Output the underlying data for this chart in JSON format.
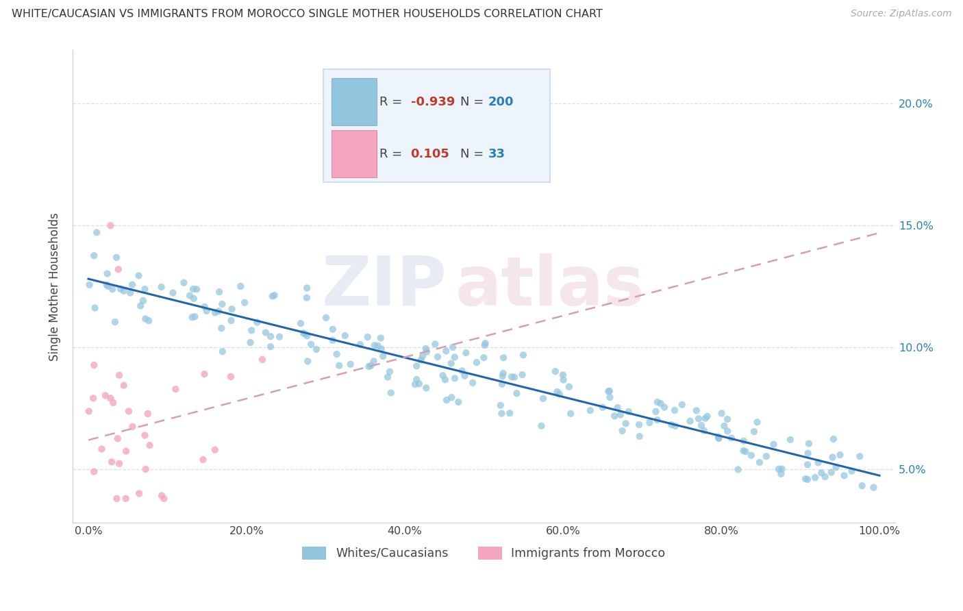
{
  "title": "WHITE/CAUCASIAN VS IMMIGRANTS FROM MOROCCO SINGLE MOTHER HOUSEHOLDS CORRELATION CHART",
  "source": "Source: ZipAtlas.com",
  "ylabel": "Single Mother Households",
  "blue_R_str": "-0.939",
  "blue_N_str": "200",
  "pink_R_str": "0.105",
  "pink_N_str": "33",
  "blue_color": "#92c5de",
  "pink_color": "#f4a6c0",
  "blue_line_color": "#2166ac",
  "pink_line_color": "#d4a0b0",
  "blue_label": "Whites/Caucasians",
  "pink_label": "Immigrants from Morocco",
  "x_ticks": [
    0.0,
    0.2,
    0.4,
    0.6,
    0.8,
    1.0
  ],
  "x_tick_labels": [
    "0.0%",
    "20.0%",
    "40.0%",
    "60.0%",
    "80.0%",
    "100.0%"
  ],
  "y_ticks": [
    0.05,
    0.1,
    0.15,
    0.2
  ],
  "y_tick_labels": [
    "5.0%",
    "10.0%",
    "15.0%",
    "20.0%"
  ],
  "xlim": [
    -0.02,
    1.02
  ],
  "ylim": [
    0.028,
    0.222
  ],
  "watermark_zip": "ZIP",
  "watermark_atlas": "atlas",
  "background_color": "#ffffff",
  "grid_color": "#dedede",
  "R_color": "#c0392b",
  "N_color": "#2980b9",
  "text_color": "#444444",
  "legend_edge_color": "#c8d8e8",
  "legend_bg_color": "#eef4fb"
}
